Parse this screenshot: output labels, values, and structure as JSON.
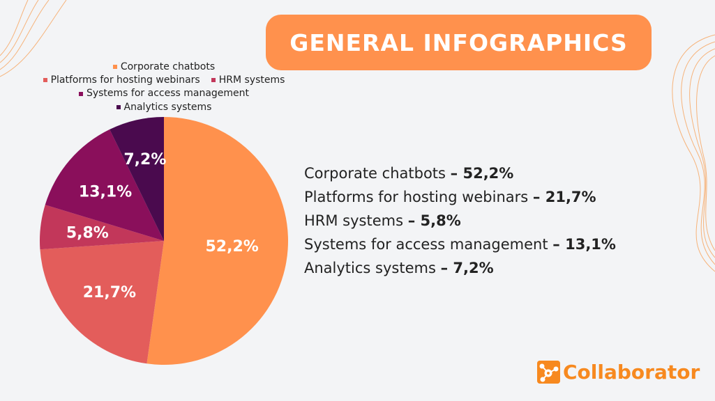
{
  "title": "GENERAL INFOGRAPHICS",
  "chart_data": {
    "type": "pie",
    "categories": [
      "Corporate chatbots",
      "Platforms for hosting webinars",
      "HRM systems",
      "Systems for access management",
      "Analytics systems"
    ],
    "values": [
      52.2,
      21.7,
      5.8,
      13.1,
      7.2
    ],
    "labels": [
      "52,2%",
      "21,7%",
      "5,8%",
      "13,1%",
      "7,2%"
    ],
    "colors": [
      "#ff914d",
      "#e35d5b",
      "#c2375a",
      "#8a0f5b",
      "#4a0a4e"
    ],
    "start": "top",
    "direction": "clockwise",
    "legend_placement": "top"
  },
  "summary": [
    {
      "name": "Corporate chatbots",
      "value": "– 52,2%"
    },
    {
      "name": "Platforms for hosting webinars",
      "value": "– 21,7%"
    },
    {
      "name": "HRM systems",
      "value": "– 5,8%"
    },
    {
      "name": "Systems for access management",
      "value": "– 13,1%"
    },
    {
      "name": "Analytics systems",
      "value": "– 7,2%"
    }
  ],
  "logo": {
    "text": "Collaborator",
    "color": "#f7891f"
  }
}
